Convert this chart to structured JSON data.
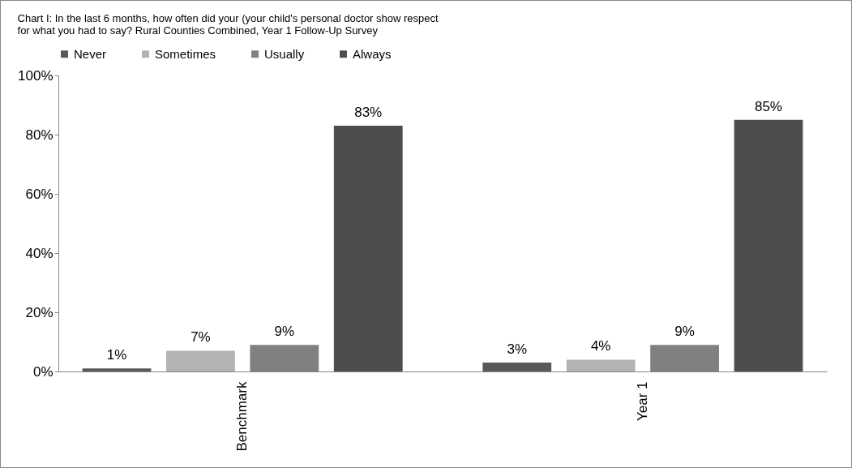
{
  "chart_data": {
    "type": "bar",
    "title": "Chart I: In the last 6 months, how often did your (your child's personal doctor show respect for what you had to say? Rural Counties Combined, Year 1 Follow-Up Survey",
    "categories": [
      "Benchmark",
      "Year 1"
    ],
    "series": [
      {
        "name": "Never",
        "color": "#595959",
        "values": [
          1,
          3
        ],
        "value_labels": [
          "1%",
          "3%"
        ]
      },
      {
        "name": "Sometimes",
        "color": "#b3b3b3",
        "values": [
          7,
          4
        ],
        "value_labels": [
          "7%",
          "4%"
        ]
      },
      {
        "name": "Usually",
        "color": "#808080",
        "values": [
          9,
          9
        ],
        "value_labels": [
          "9%",
          "9%"
        ]
      },
      {
        "name": "Always",
        "color": "#4d4d4d",
        "values": [
          83,
          85
        ],
        "value_labels": [
          "83%",
          "85%"
        ]
      }
    ],
    "ylim": [
      0,
      100
    ],
    "yticks": [
      {
        "value": 0,
        "label": "0%"
      },
      {
        "value": 20,
        "label": "20%"
      },
      {
        "value": 40,
        "label": "40%"
      },
      {
        "value": 60,
        "label": "60%"
      },
      {
        "value": 80,
        "label": "80%"
      },
      {
        "value": 100,
        "label": "100%"
      }
    ],
    "grid": false,
    "legend": "top"
  }
}
